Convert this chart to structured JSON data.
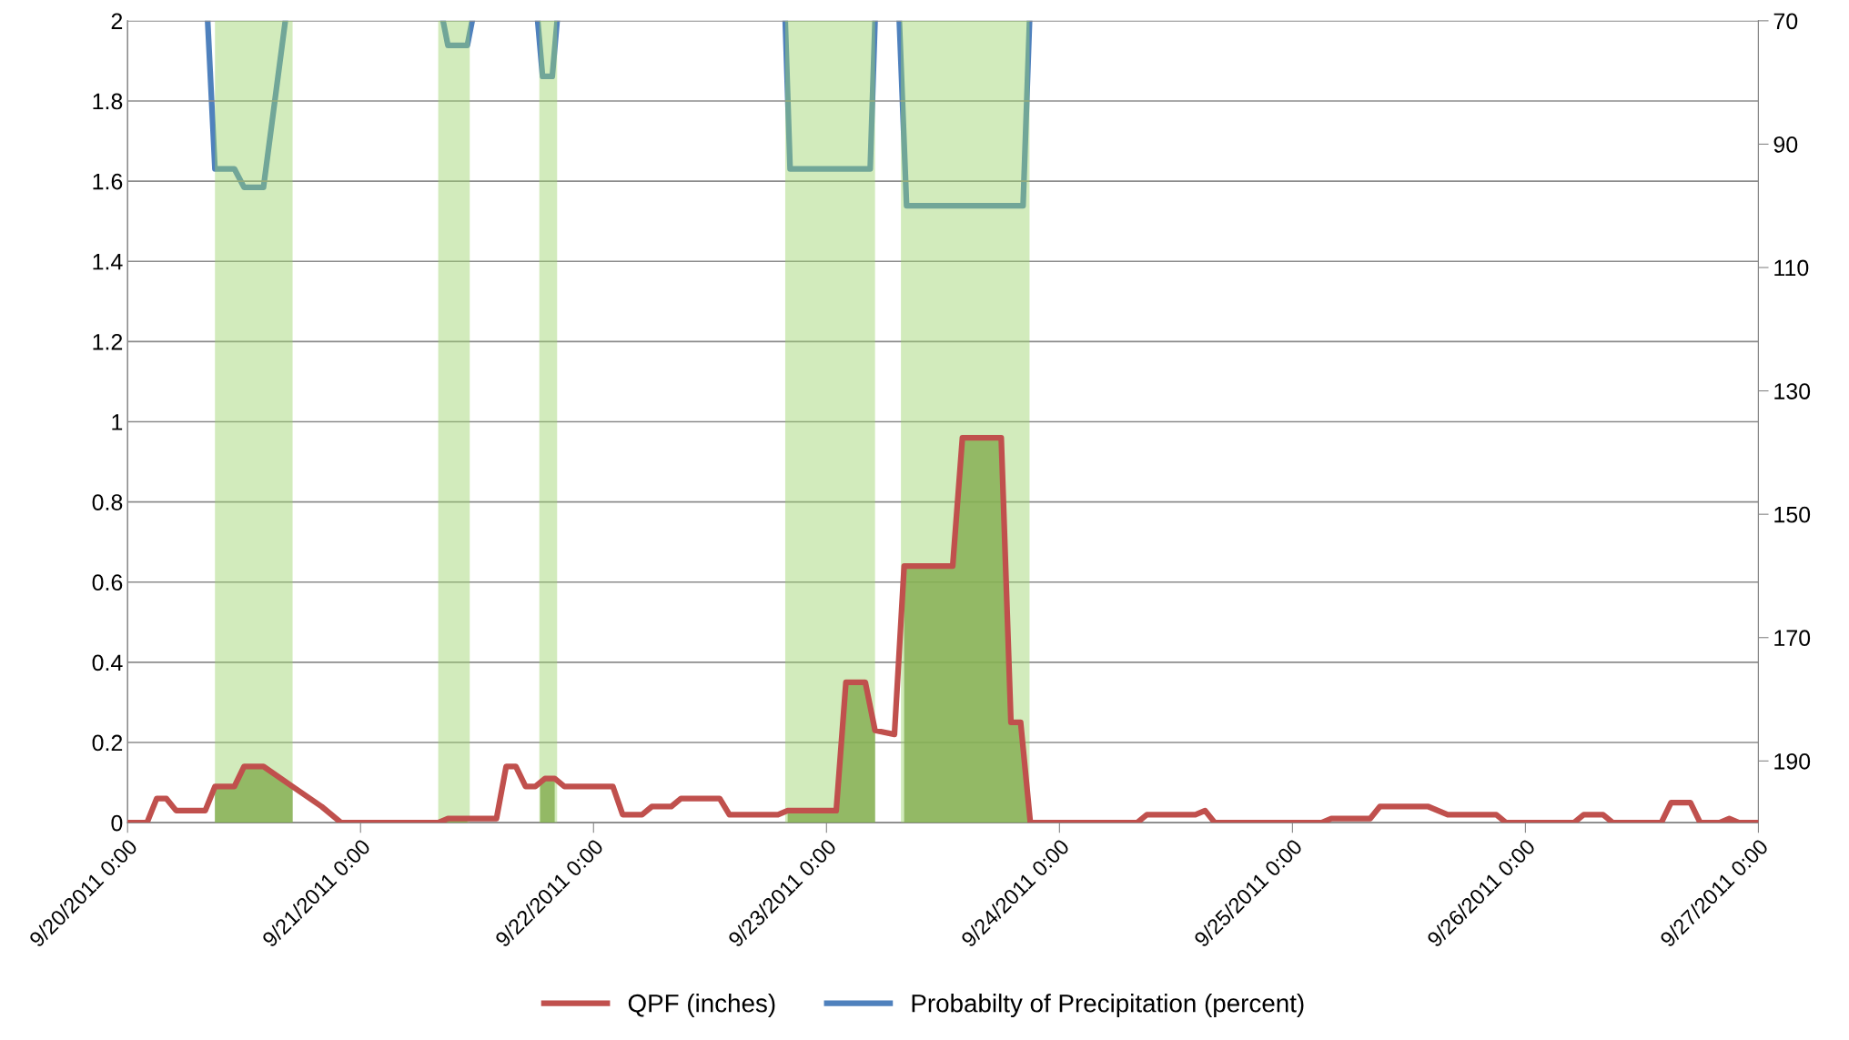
{
  "chart_data": {
    "type": "line",
    "xlim": [
      "2011-09-20T00:00",
      "2011-09-27T00:00"
    ],
    "xticks": [
      {
        "value": "2011-09-20T00:00",
        "label": "9/20/2011 0:00"
      },
      {
        "value": "2011-09-21T00:00",
        "label": "9/21/2011 0:00"
      },
      {
        "value": "2011-09-22T00:00",
        "label": "9/22/2011 0:00"
      },
      {
        "value": "2011-09-23T00:00",
        "label": "9/23/2011 0:00"
      },
      {
        "value": "2011-09-24T00:00",
        "label": "9/24/2011 0:00"
      },
      {
        "value": "2011-09-25T00:00",
        "label": "9/25/2011 0:00"
      },
      {
        "value": "2011-09-26T00:00",
        "label": "9/26/2011 0:00"
      },
      {
        "value": "2011-09-27T00:00",
        "label": "9/27/2011 0:00"
      }
    ],
    "ylim": [
      0,
      2
    ],
    "yticks": [
      0,
      0.2,
      0.4,
      0.6,
      0.8,
      1,
      1.2,
      1.4,
      1.6,
      1.8,
      2
    ],
    "y2lim": [
      200,
      70
    ],
    "y2ticks": [
      70,
      90,
      110,
      130,
      150,
      170,
      190
    ],
    "grid": "y",
    "legend": "bottom",
    "bands": [
      {
        "axis": "x",
        "from": "2011-09-20T09:00",
        "to": "2011-09-20T17:00",
        "color": "#9bd36b"
      },
      {
        "axis": "x",
        "from": "2011-09-21T08:00",
        "to": "2011-09-21T11:15",
        "color": "#9bd36b"
      },
      {
        "axis": "x",
        "from": "2011-09-21T18:25",
        "to": "2011-09-21T20:15",
        "color": "#9bd36b"
      },
      {
        "axis": "x",
        "from": "2011-09-22T19:45",
        "to": "2011-09-23T05:00",
        "color": "#9bd36b"
      },
      {
        "axis": "x",
        "from": "2011-09-23T07:40",
        "to": "2011-09-23T20:55",
        "color": "#9bd36b"
      }
    ],
    "series": [
      {
        "name": "Probabilty of Precipitation (percent)",
        "color": "#4f81bd",
        "axis": "y2",
        "x": [
          "2011-09-20T08:15",
          "2011-09-20T09:00",
          "2011-09-20T11:00",
          "2011-09-20T12:00",
          "2011-09-20T14:00",
          "2011-09-20T16:15",
          "2011-09-20T20:00",
          "2011-09-21T08:30",
          "2011-09-21T09:00",
          "2011-09-21T11:00",
          "2011-09-21T11:30",
          "2011-09-21T16:00",
          "2011-09-21T18:15",
          "2011-09-21T18:45",
          "2011-09-21T19:45",
          "2011-09-21T20:15",
          "2011-09-22T12:00",
          "2011-09-22T19:45",
          "2011-09-22T20:15",
          "2011-09-23T04:30",
          "2011-09-23T05:00",
          "2011-09-23T06:00",
          "2011-09-23T07:30",
          "2011-09-23T08:15",
          "2011-09-23T20:15",
          "2011-09-23T20:55"
        ],
        "values": [
          70,
          94,
          94,
          97,
          97,
          70,
          null,
          70,
          74,
          74,
          70,
          null,
          70,
          79,
          79,
          70,
          null,
          70,
          94,
          94,
          70,
          null,
          70,
          100,
          100,
          70
        ]
      },
      {
        "name": "QPF (inches)",
        "color": "#c0504d",
        "x": [
          "2011-09-20T00:00",
          "2011-09-20T02:00",
          "2011-09-20T03:00",
          "2011-09-20T04:00",
          "2011-09-20T05:00",
          "2011-09-20T08:00",
          "2011-09-20T09:00",
          "2011-09-20T11:00",
          "2011-09-20T12:00",
          "2011-09-20T14:00",
          "2011-09-20T17:00",
          "2011-09-20T20:00",
          "2011-09-20T22:00",
          "2011-09-21T08:00",
          "2011-09-21T09:00",
          "2011-09-21T14:00",
          "2011-09-21T15:00",
          "2011-09-21T16:00",
          "2011-09-21T17:00",
          "2011-09-21T18:00",
          "2011-09-21T19:00",
          "2011-09-21T20:00",
          "2011-09-21T21:00",
          "2011-09-22T02:00",
          "2011-09-22T03:00",
          "2011-09-22T05:00",
          "2011-09-22T06:00",
          "2011-09-22T08:00",
          "2011-09-22T09:00",
          "2011-09-22T13:00",
          "2011-09-22T14:00",
          "2011-09-22T19:00",
          "2011-09-22T20:00",
          "2011-09-23T01:00",
          "2011-09-23T02:00",
          "2011-09-23T04:00",
          "2011-09-23T05:00",
          "2011-09-23T07:00",
          "2011-09-23T08:00",
          "2011-09-23T13:00",
          "2011-09-23T14:00",
          "2011-09-23T18:00",
          "2011-09-23T19:00",
          "2011-09-23T20:00",
          "2011-09-23T21:00",
          "2011-09-24T08:00",
          "2011-09-24T09:00",
          "2011-09-24T14:00",
          "2011-09-24T15:00",
          "2011-09-24T16:00",
          "2011-09-25T03:00",
          "2011-09-25T04:00",
          "2011-09-25T08:00",
          "2011-09-25T09:00",
          "2011-09-25T14:00",
          "2011-09-25T16:00",
          "2011-09-25T21:00",
          "2011-09-25T22:00",
          "2011-09-26T05:00",
          "2011-09-26T06:00",
          "2011-09-26T08:00",
          "2011-09-26T09:00",
          "2011-09-26T14:00",
          "2011-09-26T15:00",
          "2011-09-26T17:00",
          "2011-09-26T18:00",
          "2011-09-26T20:00",
          "2011-09-26T21:00",
          "2011-09-26T22:00",
          "2011-09-27T00:00"
        ],
        "values": [
          0,
          0,
          0.06,
          0.06,
          0.03,
          0.03,
          0.09,
          0.09,
          0.14,
          0.14,
          0.09,
          0.04,
          0,
          0,
          0.01,
          0.01,
          0.14,
          0.14,
          0.09,
          0.09,
          0.11,
          0.11,
          0.09,
          0.09,
          0.02,
          0.02,
          0.04,
          0.04,
          0.06,
          0.06,
          0.02,
          0.02,
          0.03,
          0.03,
          0.35,
          0.35,
          0.23,
          0.22,
          0.64,
          0.64,
          0.96,
          0.96,
          0.25,
          0.25,
          0,
          0,
          0.02,
          0.02,
          0.03,
          0,
          0,
          0.01,
          0.01,
          0.04,
          0.04,
          0.02,
          0.02,
          0,
          0,
          0.02,
          0.02,
          0,
          0,
          0.05,
          0.05,
          0,
          0,
          0.01,
          0,
          0
        ]
      },
      {
        "type": "area",
        "color": "#6f8f3a",
        "x": [
          "2011-09-20T09:00",
          "2011-09-20T11:00",
          "2011-09-20T12:00",
          "2011-09-20T14:00",
          "2011-09-20T17:00",
          "2011-09-20T18:00",
          "2011-09-21T08:00",
          "2011-09-21T09:00",
          "2011-09-21T11:00",
          "2011-09-21T12:00",
          "2011-09-21T18:30",
          "2011-09-21T19:00",
          "2011-09-21T20:00",
          "2011-09-21T21:00",
          "2011-09-22T20:00",
          "2011-09-23T01:00",
          "2011-09-23T02:00",
          "2011-09-23T04:00",
          "2011-09-23T05:00",
          "2011-09-23T06:00",
          "2011-09-23T08:00",
          "2011-09-23T13:00",
          "2011-09-23T14:00",
          "2011-09-23T18:00",
          "2011-09-23T19:00",
          "2011-09-23T20:00",
          "2011-09-23T21:00"
        ],
        "values": [
          0.09,
          0.09,
          0.14,
          0.14,
          0.09,
          null,
          0,
          0.01,
          0.01,
          null,
          0.1,
          0.11,
          0.11,
          null,
          0.03,
          0.03,
          0.35,
          0.35,
          0.23,
          null,
          0.64,
          0.64,
          0.96,
          0.96,
          0.25,
          0.25,
          0
        ]
      }
    ]
  }
}
